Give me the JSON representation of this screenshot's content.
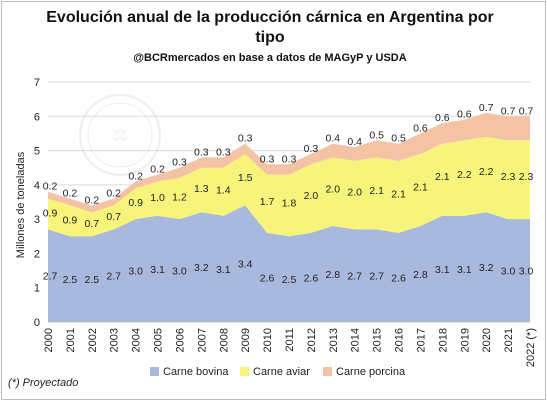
{
  "title": "Evolución anual de la producción cárnica en Argentina por tipo",
  "subtitle": "@BCRmercados  en base a datos de MAGyP y USDA",
  "footnote": "(*) Proyectado",
  "watermark_text": "BOLSA DE COMERCIO DE ROSARIO",
  "colors": {
    "carne_bovina": "#a9b9dd",
    "carne_aviar": "#f7f47b",
    "carne_porcina": "#f4c3a6"
  },
  "chart_data": {
    "type": "area",
    "stacked": true,
    "x": [
      "2000",
      "2001",
      "2002",
      "2003",
      "2004",
      "2005",
      "2006",
      "2007",
      "2008",
      "2009",
      "2010",
      "2011",
      "2012",
      "2013",
      "2014",
      "2015",
      "2016",
      "2017",
      "2018",
      "2019",
      "2020",
      "2021",
      "2022 (*)"
    ],
    "series": [
      {
        "name": "Carne bovina",
        "color": "#a9b9dd",
        "values": [
          2.7,
          2.5,
          2.5,
          2.7,
          3.0,
          3.1,
          3.0,
          3.2,
          3.1,
          3.4,
          2.6,
          2.5,
          2.6,
          2.8,
          2.7,
          2.7,
          2.6,
          2.8,
          3.1,
          3.1,
          3.2,
          3.0,
          3.0
        ],
        "labels": [
          "2.7",
          "2.5",
          "2.5",
          "2.7",
          "3.0",
          "3.1",
          "3.0",
          "3.2",
          "3.1",
          "3.4",
          "2.6",
          "2.5",
          "2.6",
          "2.8",
          "2.7",
          "2.7",
          "2.6",
          "2.8",
          "3.1",
          "3.1",
          "3.2",
          "3.0",
          "3.0"
        ]
      },
      {
        "name": "Carne aviar",
        "color": "#f7f47b",
        "values": [
          0.9,
          0.9,
          0.7,
          0.7,
          0.9,
          1.0,
          1.2,
          1.3,
          1.4,
          1.5,
          1.7,
          1.8,
          2.0,
          2.0,
          2.0,
          2.1,
          2.1,
          2.1,
          2.1,
          2.2,
          2.2,
          2.3,
          2.3
        ],
        "labels": [
          "0.9",
          "0.9",
          "0.7",
          "0.7",
          "0.9",
          "1.0",
          "1.2",
          "1.3",
          "1.4",
          "1.5",
          "1.7",
          "1.8",
          "2.0",
          "2.0",
          "2.0",
          "2.1",
          "2.1",
          "2.1",
          "2.1",
          "2.2",
          "2.2",
          "2.3",
          "2.3"
        ]
      },
      {
        "name": "Carne porcina",
        "color": "#f4c3a6",
        "values": [
          0.2,
          0.2,
          0.2,
          0.2,
          0.2,
          0.2,
          0.3,
          0.3,
          0.3,
          0.3,
          0.3,
          0.3,
          0.3,
          0.4,
          0.4,
          0.5,
          0.5,
          0.6,
          0.6,
          0.6,
          0.7,
          0.7,
          0.7
        ],
        "labels": [
          "0.2",
          "0.2",
          "0.2",
          "0.2",
          "0.2",
          "0.2",
          "0.3",
          "0.3",
          "0.3",
          "0.3",
          "0.3",
          "0.3",
          "0.3",
          "0.4",
          "0.4",
          "0.5",
          "0.5",
          "0.6",
          "0.6",
          "0.6",
          "0.7",
          "0.7",
          "0.7"
        ]
      }
    ],
    "title": "Evolución anual de la producción cárnica en Argentina por tipo",
    "xlabel": "",
    "ylabel": "Millones de toneladas",
    "ylim": [
      0,
      7
    ],
    "yticks": [
      "0",
      "1",
      "2",
      "3",
      "4",
      "5",
      "6",
      "7"
    ],
    "grid": true,
    "legend": "bottom"
  }
}
